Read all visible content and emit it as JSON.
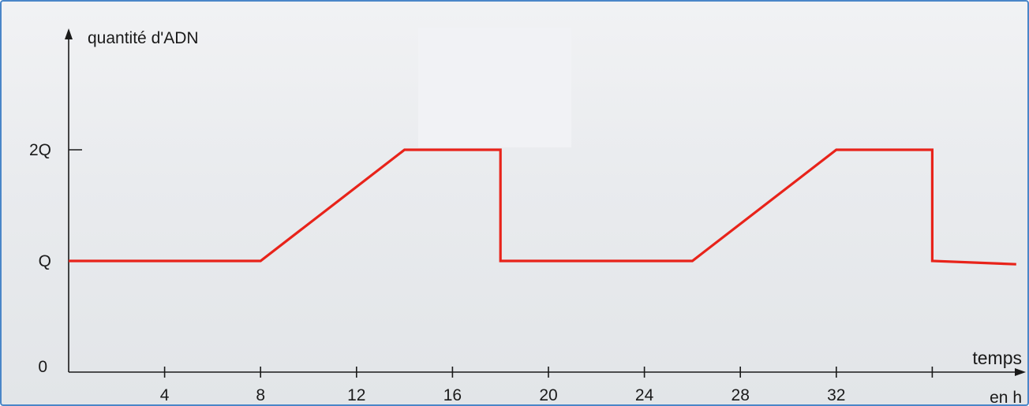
{
  "chart_data": {
    "type": "line",
    "ylabel": "quantité d'ADN",
    "xlabel": "temps",
    "xunit": "en h",
    "y_origin_label": "0",
    "y_ticks": [
      {
        "label": "Q",
        "value": 1
      },
      {
        "label": "2Q",
        "value": 2
      }
    ],
    "x_ticks": [
      4,
      8,
      12,
      16,
      20,
      24,
      28,
      32,
      36
    ],
    "x_tick_labels": [
      "4",
      "8",
      "12",
      "16",
      "20",
      "24",
      "28",
      "32",
      ""
    ],
    "xlim": [
      0,
      39.5
    ],
    "ylim": [
      0,
      3
    ],
    "series": [
      {
        "color": "#e8231a",
        "x": [
          0,
          8,
          14,
          18,
          18,
          26,
          32,
          36,
          36,
          39.5
        ],
        "y": [
          1,
          1,
          2,
          2,
          1,
          1,
          2,
          2,
          1,
          0.97
        ]
      }
    ]
  }
}
